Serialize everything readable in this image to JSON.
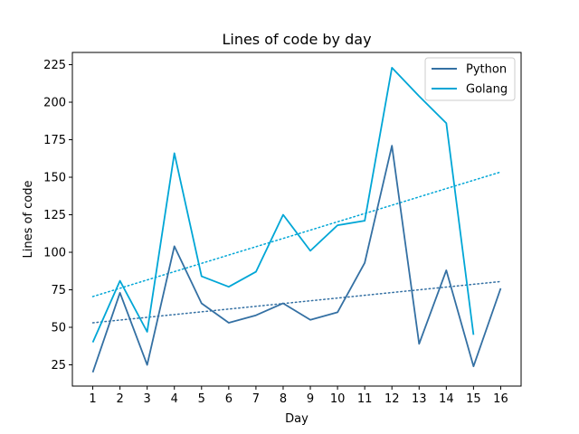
{
  "chart_data": {
    "type": "line",
    "title": "Lines of code by day",
    "xlabel": "Day",
    "ylabel": "Lines of code",
    "x_ticks": [
      1,
      2,
      3,
      4,
      5,
      6,
      7,
      8,
      9,
      10,
      11,
      12,
      13,
      14,
      15,
      16
    ],
    "y_ticks": [
      25,
      50,
      75,
      100,
      125,
      150,
      175,
      200,
      225
    ],
    "xlim": [
      0.25,
      16.75
    ],
    "ylim": [
      10.85,
      233.15
    ],
    "grid": false,
    "legend_position": "top-right",
    "series": [
      {
        "name": "Python",
        "color": "#3470a3",
        "x": [
          1,
          2,
          3,
          4,
          5,
          6,
          7,
          8,
          9,
          10,
          11,
          12,
          13,
          14,
          15,
          16
        ],
        "values": [
          20,
          73,
          25,
          104,
          66,
          53,
          58,
          66,
          55,
          60,
          93,
          171,
          39,
          88,
          24,
          76
        ],
        "trend": {
          "x": [
            1,
            16
          ],
          "values": [
            53,
            80.5
          ]
        }
      },
      {
        "name": "Golang",
        "color": "#00a6d6",
        "x": [
          1,
          2,
          3,
          4,
          5,
          6,
          7,
          8,
          9,
          10,
          11,
          12,
          13,
          14,
          15
        ],
        "values": [
          40,
          81,
          47,
          166,
          84,
          77,
          87,
          125,
          101,
          118,
          121,
          223,
          204,
          186,
          45
        ],
        "trend": {
          "x": [
            1,
            16
          ],
          "values": [
            70.5,
            153.5
          ]
        }
      }
    ]
  }
}
